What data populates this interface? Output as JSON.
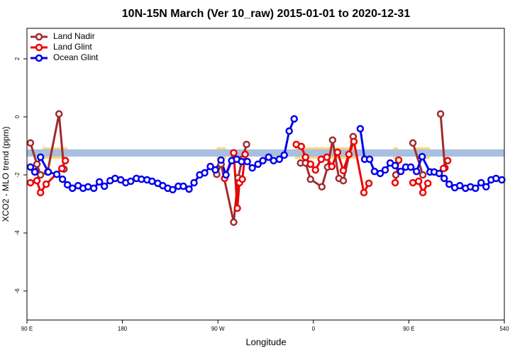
{
  "chart_data": {
    "type": "line",
    "title": "10N-15N March (Ver 10_raw)   2015-01-01 to 2020-12-31",
    "x_label": "Longitude",
    "y_label": "XCO2 - MLO trend (ppm)",
    "xlim": [
      90,
      540
    ],
    "ylim": [
      -7,
      3.05
    ],
    "xticks": [
      {
        "value": 90,
        "label": "90 E"
      },
      180,
      {
        "value": 270,
        "label": "90 W"
      },
      {
        "value": 360,
        "label": "0"
      },
      {
        "value": 450,
        "label": "90 E"
      },
      540
    ],
    "yticks": [
      -6,
      -4,
      -2,
      0,
      2
    ],
    "legend": "upper left",
    "band": [
      -1.37,
      -1.12
    ],
    "band_color": "#a8bfe0",
    "shaded_x": [
      [
        104.7,
        128.2
      ],
      [
        268.9,
        277.6
      ],
      [
        342.6,
        399.6
      ],
      [
        435.1,
        439.8
      ],
      [
        456.5,
        469.9
      ]
    ],
    "shaded_ylim": [
      -1.45,
      -1.05
    ],
    "shaded_color": "#fcd87a",
    "series": [
      {
        "name": "Land Nadir",
        "color": "#a02c2c",
        "x": [
          93.3,
          99.4,
          102.8,
          109.4,
          120.2,
          124.9,
          null,
          268.9,
          273.0,
          284.9,
          289.0,
          293.0,
          297.0,
          null,
          347.9,
          352.6,
          357.3,
          368.0,
          373.4,
          378.1,
          384.1,
          388.2,
          397.5,
          null,
          437.7,
          null,
          453.8,
          463.2,
          null,
          479.9,
          484.0
        ],
        "values": [
          -0.9,
          -1.63,
          -2.0,
          -1.9,
          0.1,
          -1.8,
          null,
          -1.98,
          -1.63,
          -3.63,
          -2.1,
          -1.46,
          -0.95,
          null,
          -1.59,
          -1.59,
          -2.15,
          -2.41,
          -1.73,
          -0.8,
          -2.12,
          -2.2,
          -0.68,
          null,
          -2.0,
          null,
          -0.9,
          -2.0,
          null,
          0.1,
          -1.76
        ]
      },
      {
        "name": "Land Glint",
        "color": "#ee0000",
        "x": [
          93.3,
          99.4,
          102.8,
          108.1,
          122.9,
          126.2,
          null,
          276.3,
          284.9,
          288.3,
          290.3,
          293.0,
          295.7,
          null,
          343.9,
          348.6,
          352.6,
          357.3,
          362.0,
          367.4,
          372.7,
          377.4,
          382.8,
          388.2,
          393.5,
          398.2,
          407.6,
          412.3,
          null,
          437.1,
          440.4,
          null,
          453.8,
          459.2,
          463.2,
          467.9,
          null,
          482.6,
          486.6
        ],
        "values": [
          -2.27,
          -2.2,
          -2.61,
          -2.32,
          -1.78,
          -1.51,
          null,
          -2.12,
          -1.24,
          -3.15,
          -2.27,
          -2.15,
          -1.29,
          null,
          -0.95,
          -1.02,
          -1.39,
          -1.63,
          -1.83,
          -1.46,
          -1.39,
          -1.71,
          -1.22,
          -1.85,
          -1.29,
          -0.85,
          -2.61,
          -2.29,
          null,
          -2.27,
          -1.49,
          null,
          -2.27,
          -2.22,
          -2.61,
          -2.29,
          null,
          -1.78,
          -1.51
        ]
      },
      {
        "name": "Ocean Glint",
        "color": "#0000ee",
        "x": [
          93.3,
          97.4,
          102.8,
          110.1,
          118.1,
          123.5,
          128.2,
          132.9,
          138.2,
          142.9,
          147.6,
          153.0,
          158.3,
          163.0,
          168.4,
          173.1,
          178.4,
          183.1,
          187.8,
          193.2,
          197.9,
          203.2,
          207.9,
          213.3,
          218.0,
          222.7,
          227.4,
          232.7,
          237.4,
          242.8,
          247.5,
          252.8,
          257.5,
          262.9,
          267.6,
          272.9,
          277.6,
          283.0,
          287.7,
          292.3,
          297.7,
          302.4,
          307.8,
          312.4,
          317.8,
          322.5,
          327.9,
          332.5,
          337.2,
          341.9,
          null,
          404.2,
          408.3,
          413.0,
          417.6,
          423.0,
          427.7,
          432.4,
          437.1,
          442.4,
          447.1,
          451.8,
          457.2,
          462.5,
          469.9,
          473.9,
          478.6,
          483.3,
          488.0,
          493.3,
          498.0,
          503.4,
          508.1,
          512.8,
          518.1,
          522.8,
          527.5,
          532.2,
          537.6
        ],
        "values": [
          -1.73,
          -1.9,
          -1.39,
          -1.9,
          -1.98,
          -2.15,
          -2.34,
          -2.46,
          -2.37,
          -2.46,
          -2.41,
          -2.46,
          -2.24,
          -2.39,
          -2.2,
          -2.12,
          -2.17,
          -2.27,
          -2.22,
          -2.12,
          -2.15,
          -2.17,
          -2.22,
          -2.29,
          -2.37,
          -2.46,
          -2.51,
          -2.39,
          -2.39,
          -2.49,
          -2.27,
          -2.0,
          -1.93,
          -1.71,
          -1.83,
          -1.49,
          -2.0,
          -1.51,
          -1.46,
          -1.54,
          -1.54,
          -1.76,
          -1.63,
          -1.51,
          -1.39,
          -1.51,
          -1.46,
          -1.32,
          -0.49,
          -0.07,
          null,
          -0.41,
          -1.46,
          -1.46,
          -1.88,
          -1.95,
          -1.83,
          -1.59,
          -1.68,
          -1.88,
          -1.73,
          -1.73,
          -1.88,
          -1.37,
          -1.9,
          -1.9,
          -1.95,
          -2.12,
          -2.32,
          -2.44,
          -2.37,
          -2.46,
          -2.41,
          -2.46,
          -2.27,
          -2.41,
          -2.17,
          -2.12,
          -2.17
        ]
      }
    ]
  }
}
